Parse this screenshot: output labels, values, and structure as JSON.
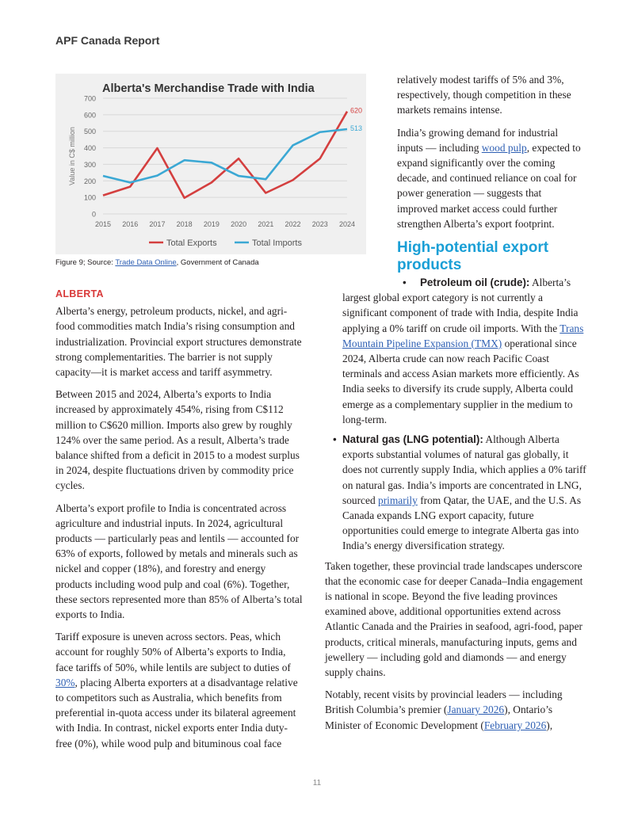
{
  "header": "APF Canada Report",
  "chart_data": {
    "type": "line",
    "title": "Alberta's Merchandise Trade with India",
    "ylabel": "Value in C$ million",
    "xlabel": "",
    "categories": [
      "2015",
      "2016",
      "2017",
      "2018",
      "2019",
      "2020",
      "2021",
      "2022",
      "2023",
      "2024"
    ],
    "ylim": [
      0,
      700
    ],
    "yticks": [
      0,
      100,
      200,
      300,
      400,
      500,
      600,
      700
    ],
    "series": [
      {
        "name": "Total Exports",
        "color": "#d43f3f",
        "values": [
          112,
          165,
          398,
          97,
          190,
          335,
          127,
          205,
          335,
          620
        ],
        "end_label": "620"
      },
      {
        "name": "Total Imports",
        "color": "#3ba8d4",
        "values": [
          230,
          190,
          232,
          325,
          310,
          230,
          210,
          415,
          495,
          513
        ],
        "end_label": "513"
      }
    ],
    "grid": true,
    "legend": "bottom"
  },
  "caption": {
    "prefix": "Figure 9; Source: ",
    "link": "Trade Data Online",
    "suffix": ", Government of Canada"
  },
  "left": {
    "heading": "ALBERTA",
    "p1": "Alberta’s energy, petroleum products, nickel, and agri-food commodities match India’s rising consumption and industrialization. Provincial export structures demonstrate strong complementarities. The barrier is not supply capacity—it is market access and tariff asymmetry.",
    "p2": "Between 2015 and 2024, Alberta’s exports to India increased by approximately 454%, rising from C$112 million to C$620 million. Imports also grew by roughly 124% over the same period. As a result, Alberta’s trade balance shifted from a deficit in 2015 to a modest surplus in 2024, despite fluctuations driven by commodity price cycles.",
    "p3": "Alberta’s export profile to India is concentrated across agriculture and industrial inputs. In 2024, agricultural products — particularly peas and lentils — accounted for 63% of exports, followed by metals and minerals such as nickel and copper (18%), and forestry and energy products including wood pulp and coal (6%). Together, these sectors represented more than 85% of Alberta’s total exports to India.",
    "p4_a": "Tariff exposure is uneven across sectors. Peas, which account for roughly 50% of Alberta’s exports to India, face tariffs of 50%, while lentils are subject to duties of ",
    "p4_link": "30%",
    "p4_b": ", placing Alberta exporters at a disadvantage relative to competitors such as Australia, which benefits from preferential in-quota access under its bilateral agreement with India. In contrast, nickel exports enter India duty-free (0%), while wood pulp and bituminous coal face"
  },
  "right_top": {
    "p1": "relatively modest tariffs of 5% and 3%, respectively, though competition in these markets remains intense.",
    "p2_a": "India’s growing demand for industrial inputs — including ",
    "p2_link": "wood pulp",
    "p2_b": ", expected to expand significantly over the coming decade, and continued reliance on coal for power generation — suggests that improved market access could further strengthen Alberta’s export footprint."
  },
  "subheading": "High-potential export products",
  "right": {
    "b1_title": "Petroleum oil (crude):",
    "b1_a": " Alberta’s largest global export category is not currently a significant component of trade with India, despite India applying a 0% tariff on crude oil imports. With the ",
    "b1_link": "Trans Mountain Pipeline Expansion (TMX)",
    "b1_b": " operational since 2024, Alberta crude can now reach Pacific Coast terminals and access Asian markets more efficiently. As India seeks to diversify its crude supply, Alberta could emerge as a complementary supplier in the medium to long-term.",
    "b2_title": "Natural gas (LNG potential):",
    "b2_a": " Although Alberta exports substantial volumes of natural gas globally, it does not currently supply India, which applies a 0% tariff on natural gas. India’s imports are concentrated in LNG, sourced ",
    "b2_link": "primarily",
    "b2_b": " from Qatar, the UAE, and the U.S. As Canada expands LNG export capacity, future opportunities could emerge to integrate Alberta gas into India’s energy diversification strategy.",
    "p3": "Taken together, these provincial trade landscapes underscore that the economic case for deeper Canada–India engagement is national in scope. Beyond the five leading provinces examined above, additional opportunities extend across Atlantic Canada and the Prairies in seafood, agri-food, paper products, critical minerals, manufacturing inputs, gems and jewellery — including gold and diamonds — and energy supply chains.",
    "p4_a": "Notably, recent visits by provincial leaders — including British Columbia’s premier (",
    "p4_link1": "January 2026",
    "p4_b": "), Ontario’s Minister of Economic Development (",
    "p4_link2": "February 2026",
    "p4_c": "),"
  },
  "page_number": "11"
}
